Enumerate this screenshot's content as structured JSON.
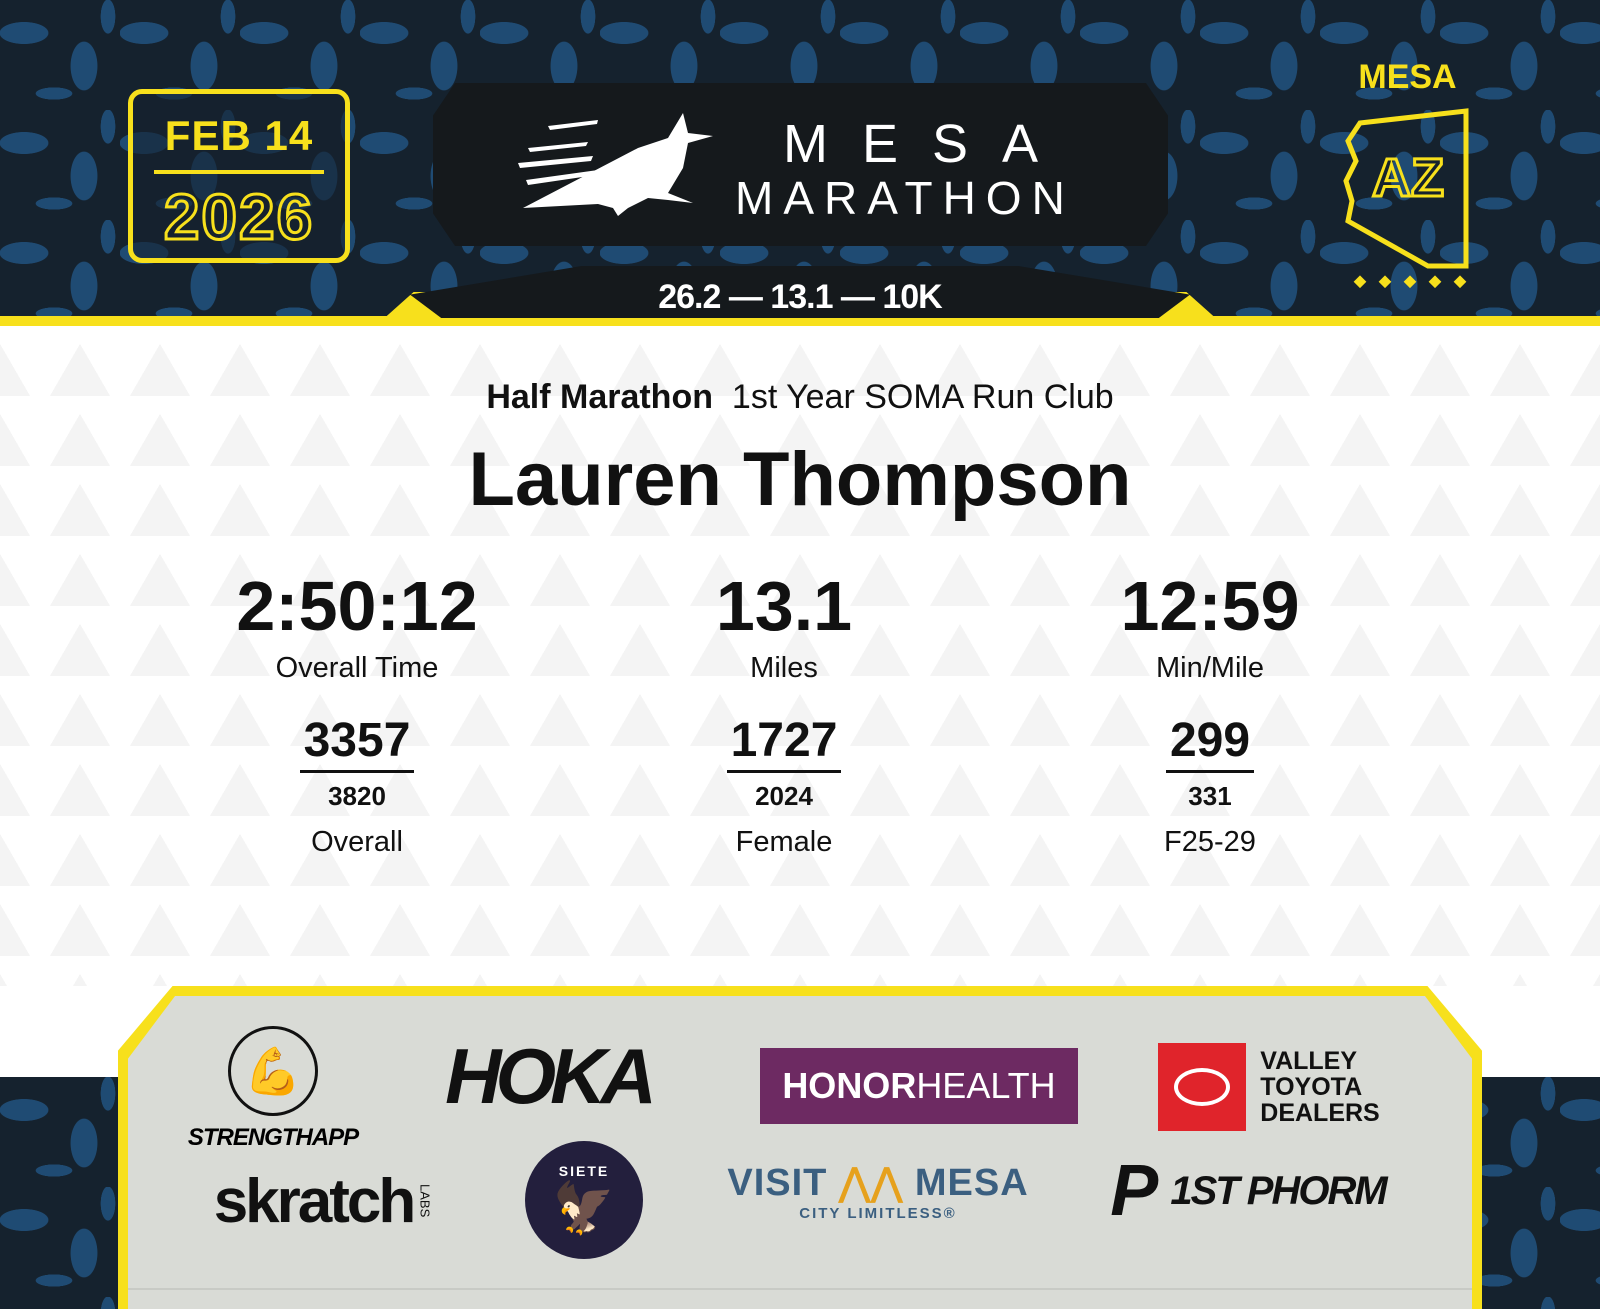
{
  "header": {
    "date": {
      "month_day": "FEB 14",
      "year": "2026"
    },
    "logo": {
      "line1": "MESA",
      "line2": "MARATHON",
      "icon": "roadrunner-icon"
    },
    "distances": "26.2 — 13.1 — 10K",
    "location": {
      "city": "MESA",
      "state": "AZ",
      "icon": "arizona-outline-icon"
    },
    "colors": {
      "yellow": "#f7e01c",
      "dark": "#15191c",
      "pattern_blue": "#1f4b73"
    }
  },
  "result": {
    "race": "Half Marathon",
    "team": "1st Year SOMA Run Club",
    "name": "Lauren Thompson",
    "stats": [
      {
        "value": "2:50:12",
        "label": "Overall Time"
      },
      {
        "value": "13.1",
        "label": "Miles"
      },
      {
        "value": "12:59",
        "label": "Min/Mile"
      }
    ],
    "placements": [
      {
        "place": "3357",
        "total": "3820",
        "category": "Overall"
      },
      {
        "place": "1727",
        "total": "2024",
        "category": "Female"
      },
      {
        "place": "299",
        "total": "331",
        "category": "F25-29"
      }
    ]
  },
  "sponsors": {
    "strengthapp": "STRENGTHAPP",
    "hoka": "HOKA",
    "honorhealth": {
      "a": "HONOR",
      "b": "HEALTH"
    },
    "toyota": [
      "VALLEY",
      "TOYOTA",
      "DEALERS"
    ],
    "skratch": {
      "a": "skratch",
      "b": "LABS"
    },
    "siete": "SIETE",
    "visitmesa": {
      "a": "VISIT",
      "b": "MESA",
      "tag": "CITY LIMITLESS®"
    },
    "phorm": "1ST PHORM"
  }
}
